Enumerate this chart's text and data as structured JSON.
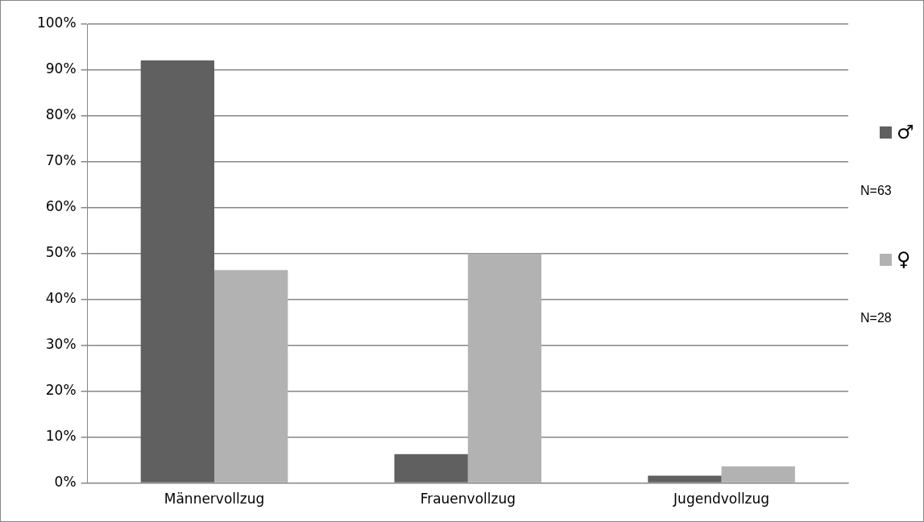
{
  "chart_data": {
    "type": "bar",
    "categories": [
      "Männervollzug",
      "Frauenvollzug",
      "Jugendvollzug"
    ],
    "series": [
      {
        "name": "♂",
        "color": "#606060",
        "values": [
          92.1,
          6.3,
          1.6
        ]
      },
      {
        "name": "♀",
        "color": "#b2b2b2",
        "values": [
          46.4,
          50.0,
          3.6
        ]
      }
    ],
    "ylim": [
      0,
      100
    ],
    "yticks": [
      {
        "value": 0,
        "label": "0%"
      },
      {
        "value": 10,
        "label": "10%"
      },
      {
        "value": 20,
        "label": "20%"
      },
      {
        "value": 30,
        "label": "30%"
      },
      {
        "value": 40,
        "label": "40%"
      },
      {
        "value": 50,
        "label": "50%"
      },
      {
        "value": 60,
        "label": "60%"
      },
      {
        "value": 70,
        "label": "70%"
      },
      {
        "value": 80,
        "label": "80%"
      },
      {
        "value": 90,
        "label": "90%"
      },
      {
        "value": 100,
        "label": "100%"
      }
    ],
    "grid": "y",
    "legend": "right",
    "annotations": [
      "N=63",
      "N=28"
    ]
  }
}
